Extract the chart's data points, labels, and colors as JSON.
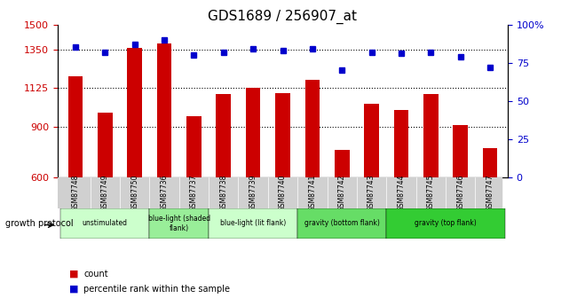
{
  "title": "GDS1689 / 256907_at",
  "samples": [
    "GSM87748",
    "GSM87749",
    "GSM87750",
    "GSM87736",
    "GSM87737",
    "GSM87738",
    "GSM87739",
    "GSM87740",
    "GSM87741",
    "GSM87742",
    "GSM87743",
    "GSM87744",
    "GSM87745",
    "GSM87746",
    "GSM87747"
  ],
  "counts": [
    1195,
    980,
    1360,
    1390,
    960,
    1090,
    1130,
    1095,
    1175,
    760,
    1035,
    995,
    1090,
    910,
    775
  ],
  "percentiles": [
    85,
    82,
    87,
    90,
    80,
    82,
    84,
    83,
    84,
    70,
    82,
    81,
    82,
    79,
    72
  ],
  "ylim_left": [
    600,
    1500
  ],
  "ylim_right": [
    0,
    100
  ],
  "yticks_left": [
    600,
    900,
    1125,
    1350,
    1500
  ],
  "yticks_right": [
    0,
    25,
    50,
    75,
    100
  ],
  "bar_color": "#cc0000",
  "dot_color": "#0000cc",
  "xlabel": "growth protocol",
  "legend_count": "count",
  "legend_pct": "percentile rank within the sample",
  "tick_label_color_left": "#cc0000",
  "tick_label_color_right": "#0000cc",
  "groups_def": [
    {
      "label": "unstimulated",
      "start": 0,
      "end": 2,
      "color": "#ccffcc"
    },
    {
      "label": "blue-light (shaded\nflank)",
      "start": 3,
      "end": 4,
      "color": "#99ee99"
    },
    {
      "label": "blue-light (lit flank)",
      "start": 5,
      "end": 7,
      "color": "#ccffcc"
    },
    {
      "label": "gravity (bottom flank)",
      "start": 8,
      "end": 10,
      "color": "#66dd66"
    },
    {
      "label": "gravity (top flank)",
      "start": 11,
      "end": 14,
      "color": "#33cc33"
    }
  ]
}
